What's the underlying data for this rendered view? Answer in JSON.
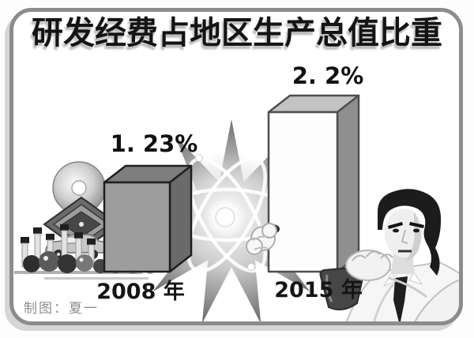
{
  "chart_data": {
    "type": "bar",
    "title": "研发经费占地区生产总值比重",
    "categories": [
      "2008 年",
      "2015 年"
    ],
    "values": [
      1.23,
      2.2
    ],
    "value_labels": [
      "1. 23%",
      "2. 2%"
    ],
    "unit": "%",
    "ylim": [
      0,
      2.4
    ],
    "legend": "none",
    "grid": false,
    "bar_colors": [
      {
        "front": "#9d9d9d",
        "top": "#7e7e7e",
        "side": "#6a6a6a",
        "outline": "#1f1f1f"
      },
      {
        "front": "#fdfdfd",
        "top": "#c3c3c3",
        "side": "#8f8f8f",
        "outline": "#4f4f4f"
      }
    ]
  },
  "credit": {
    "text": "制图：夏一"
  },
  "decor": {
    "icons": [
      "atom-icon",
      "starburst-icon",
      "test-tubes-icon",
      "cd-disc-icon",
      "circuit-board-icon",
      "car-icon",
      "molecule-spheres-icon",
      "scientist-figure",
      "flask-icon"
    ]
  },
  "colors": {
    "ink": "#141414",
    "frame_border": "#8c8c8c",
    "credit_gray": "#8f8f8f",
    "title_shadow": "#b9b9b9",
    "background": "#ffffff"
  }
}
